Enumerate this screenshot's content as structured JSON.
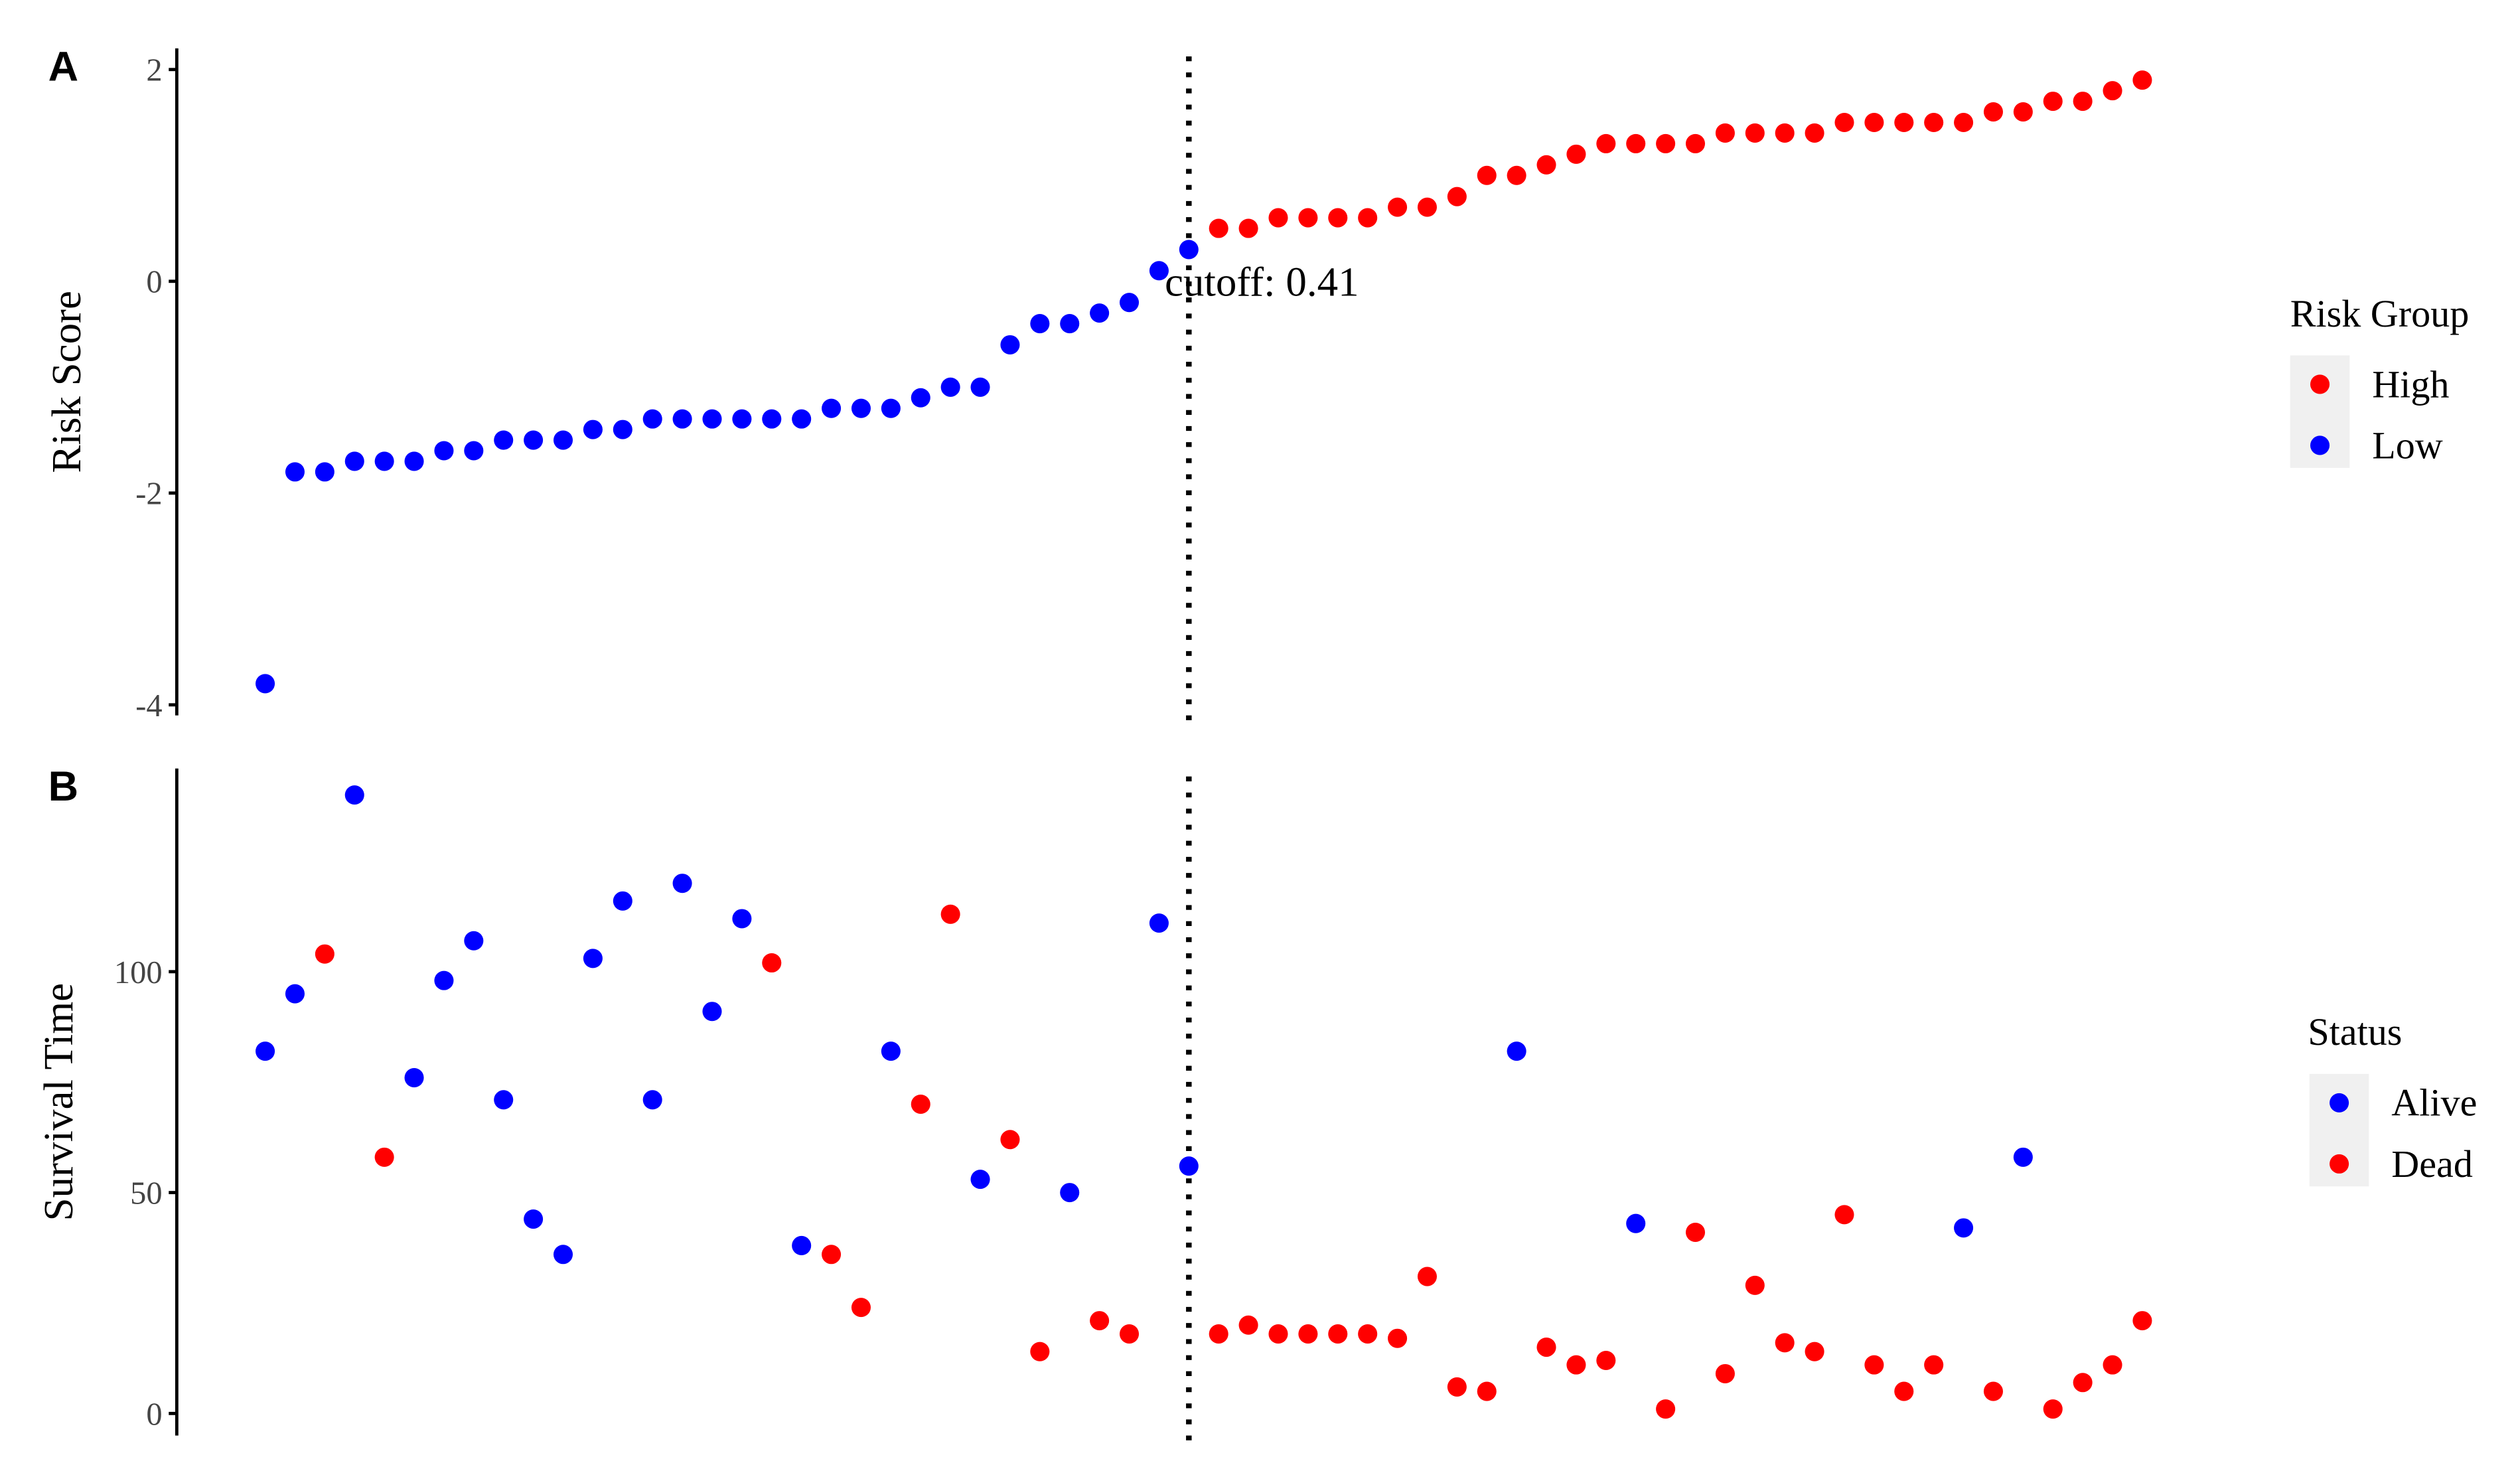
{
  "chart_data": [
    {
      "type": "scatter",
      "panel_label": "A",
      "ylabel": "Risk Score",
      "ylim": [
        -4.1,
        2.2
      ],
      "yticks": [
        -4,
        -2,
        0,
        2
      ],
      "legend_title": "Risk Group",
      "vline_x": 32,
      "annotation": {
        "text": "cutoff: 0.41",
        "y": 0
      },
      "series": [
        {
          "name": "High",
          "color": "#ff0000",
          "x": [
            33,
            34,
            35,
            36,
            37,
            38,
            39,
            40,
            41,
            42,
            43,
            44,
            45,
            46,
            47,
            48,
            49,
            50,
            51,
            52,
            53,
            54,
            55,
            56,
            57,
            58,
            59,
            60,
            61,
            62,
            63,
            64
          ],
          "values": [
            0.5,
            0.5,
            0.6,
            0.6,
            0.6,
            0.6,
            0.7,
            0.7,
            0.8,
            1.0,
            1.0,
            1.1,
            1.2,
            1.3,
            1.3,
            1.3,
            1.3,
            1.4,
            1.4,
            1.4,
            1.4,
            1.5,
            1.5,
            1.5,
            1.5,
            1.5,
            1.6,
            1.6,
            1.7,
            1.7,
            1.8,
            1.9
          ]
        },
        {
          "name": "Low",
          "color": "#0000ff",
          "x": [
            1,
            2,
            3,
            4,
            5,
            6,
            7,
            8,
            9,
            10,
            11,
            12,
            13,
            14,
            15,
            16,
            17,
            18,
            19,
            20,
            21,
            22,
            23,
            24,
            25,
            26,
            27,
            28,
            29,
            30,
            31,
            32
          ],
          "values": [
            -3.8,
            -1.8,
            -1.8,
            -1.7,
            -1.7,
            -1.7,
            -1.6,
            -1.6,
            -1.5,
            -1.5,
            -1.5,
            -1.4,
            -1.4,
            -1.3,
            -1.3,
            -1.3,
            -1.3,
            -1.3,
            -1.3,
            -1.2,
            -1.2,
            -1.2,
            -1.1,
            -1.0,
            -1.0,
            -0.6,
            -0.4,
            -0.4,
            -0.3,
            -0.2,
            0.1,
            0.3
          ]
        }
      ]
    },
    {
      "type": "scatter",
      "panel_label": "B",
      "ylabel": "Survival Time",
      "ylim": [
        -5,
        146
      ],
      "yticks": [
        0,
        50,
        100
      ],
      "legend_title": "Status",
      "vline_x": 32,
      "series": [
        {
          "name": "Alive",
          "color": "#0000ff",
          "x": [
            1,
            2,
            4,
            6,
            7,
            8,
            9,
            10,
            11,
            12,
            13,
            14,
            15,
            16,
            17,
            19,
            22,
            25,
            28,
            31,
            32,
            43,
            47,
            58,
            60
          ],
          "values": [
            82,
            95,
            140,
            76,
            98,
            107,
            71,
            44,
            36,
            103,
            116,
            71,
            120,
            91,
            112,
            38,
            82,
            53,
            50,
            111,
            56,
            82,
            43,
            42,
            58
          ]
        },
        {
          "name": "Dead",
          "color": "#ff0000",
          "x": [
            3,
            5,
            18,
            20,
            21,
            23,
            24,
            26,
            27,
            29,
            30,
            33,
            34,
            35,
            36,
            37,
            38,
            39,
            40,
            41,
            42,
            44,
            45,
            46,
            48,
            49,
            50,
            51,
            52,
            53,
            54,
            55,
            56,
            57,
            59,
            61,
            62,
            63,
            64
          ],
          "values": [
            104,
            58,
            102,
            36,
            24,
            70,
            113,
            62,
            14,
            21,
            18,
            18,
            20,
            18,
            18,
            18,
            18,
            17,
            31,
            6,
            5,
            15,
            11,
            12,
            1,
            41,
            9,
            29,
            16,
            14,
            45,
            11,
            5,
            11,
            5,
            1,
            7,
            11,
            21
          ]
        }
      ]
    }
  ]
}
